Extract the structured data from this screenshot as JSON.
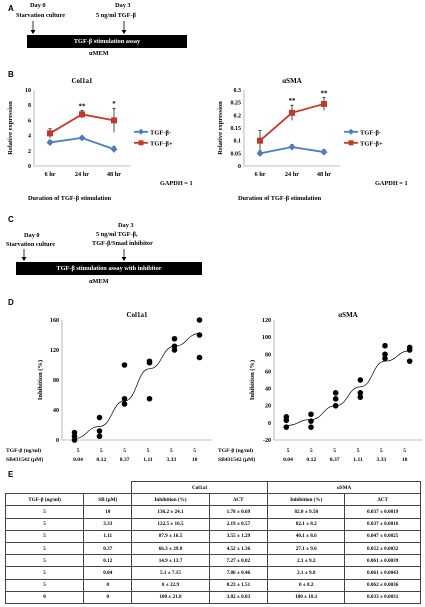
{
  "panel_a": {
    "letter": "A",
    "day0": "Day 0",
    "starvation": "Starvation culture",
    "day3": "Day 3",
    "tgf": "5 ng/ml TGF-β",
    "assay": "TGF-β stimulation assay",
    "medium": "αMEM"
  },
  "panel_b": {
    "letter": "B",
    "xtitle": "Duration of TGF-β stimulation",
    "gapdh": "GAPDH = 1"
  },
  "panel_c": {
    "letter": "C",
    "day0": "Day 0",
    "starvation": "Starvation culture",
    "day3": "Day 3",
    "tgf_line1": "5 ng/ml TGF-β,",
    "tgf_line2": "TGF-β/Smad inhibitor",
    "assay": "TGF-β stimulation assay with inhibitor",
    "medium": "αMEM"
  },
  "panel_d": {
    "letter": "D",
    "row1_label": "TGF-β (ng/ml)",
    "row2_label": "SB431542 (μM)",
    "tgf_values": [
      "5",
      "5",
      "5",
      "5",
      "5",
      "5"
    ],
    "sb_values": [
      "0.04",
      "0.12",
      "0.37",
      "1.11",
      "3.33",
      "10"
    ]
  },
  "panel_e": {
    "letter": "E",
    "group_col1a1": "Col1a1",
    "group_asma": "αSMA",
    "headers": [
      "TGF-β (ng/ml)",
      "SB (μM)",
      "Inhibition (%)",
      "ΔCT",
      "Inhibition (%)",
      "ΔCT"
    ],
    "rows": [
      [
        "5",
        "10",
        "136.2 ± 24.1",
        "1.78 ± 0.69",
        "82.0 ± 9.50",
        "0.037 ± 0.0019"
      ],
      [
        "5",
        "3.33",
        "122.5 ± 16.5",
        "2.19 ± 0.57",
        "82.1 ± 8.2",
        "0.037 ± 0.0016"
      ],
      [
        "5",
        "1.11",
        "87.9 ± 16.5",
        "3.55 ± 1.29",
        "40.1 ± 8.6",
        "0.047 ± 0.0025"
      ],
      [
        "5",
        "0.37",
        "66.3 ± 29.8",
        "4.52 ± 1.36",
        "27.1 ± 9.6",
        "0.052 ± 0.0032"
      ],
      [
        "5",
        "0.12",
        "14.9 ± 13.7",
        "7.27 ± 0.82",
        "2.1 ± 9.2",
        "0.061 ± 0.0039"
      ],
      [
        "5",
        "0.04",
        "5.1 ± 7.15",
        "7.86 ± 0.46",
        "2.1 ± 9.8",
        "0.061 ± 0.0043"
      ],
      [
        "5",
        "0",
        "0 ± 22.9",
        "8.23 ± 1.51",
        "0 ± 8.2",
        "0.062 ± 0.0036"
      ],
      [
        "0",
        "0",
        "100 ± 21.8",
        "3.02 ± 0.83",
        "100 ± 18.1",
        "0.033 ± 0.0031"
      ]
    ]
  },
  "chart_data": [
    {
      "id": "col1a1_time",
      "type": "line",
      "title": "Col1a1",
      "ylabel": "Relative expression",
      "categories": [
        "6 hr",
        "24 hr",
        "48 hr"
      ],
      "ylim": [
        0,
        10
      ],
      "yticks": [
        "0",
        "2",
        "4",
        "6",
        "8",
        "10"
      ],
      "series": [
        {
          "name": "TGF-β-",
          "color": "#4a7ebb",
          "marker": "diamond",
          "values": [
            3.1,
            3.7,
            2.2
          ],
          "errors": [
            0.3,
            0.2,
            0.4
          ]
        },
        {
          "name": "TGF-β+",
          "color": "#c0392b",
          "marker": "square",
          "values": [
            4.3,
            6.8,
            6.0
          ],
          "errors": [
            0.6,
            0.5,
            1.6
          ]
        }
      ],
      "annotations": [
        {
          "category": "24 hr",
          "text": "**"
        },
        {
          "category": "48 hr",
          "text": "*"
        }
      ]
    },
    {
      "id": "asma_time",
      "type": "line",
      "title": "αSMA",
      "ylabel": "Relative expression",
      "categories": [
        "6 hr",
        "24 hr",
        "48 hr"
      ],
      "ylim": [
        0,
        0.3
      ],
      "yticks": [
        "0",
        "0.05",
        "0.1",
        "0.15",
        "0.2",
        "0.25",
        "0.3"
      ],
      "series": [
        {
          "name": "TGF-β-",
          "color": "#4a7ebb",
          "marker": "diamond",
          "values": [
            0.05,
            0.075,
            0.055
          ],
          "errors": [
            0.01,
            0.01,
            0.01
          ]
        },
        {
          "name": "TGF-β+",
          "color": "#c0392b",
          "marker": "square",
          "values": [
            0.1,
            0.21,
            0.245
          ],
          "errors": [
            0.04,
            0.03,
            0.025
          ]
        }
      ],
      "annotations": [
        {
          "category": "24 hr",
          "text": "**"
        },
        {
          "category": "48 hr",
          "text": "**"
        }
      ]
    },
    {
      "id": "col1a1_inhibition",
      "type": "scatter",
      "title": "Col1a1",
      "ylabel": "Inhibition (%)",
      "ylim": [
        0,
        160
      ],
      "yticks": [
        "0",
        "40",
        "80",
        "120",
        "160"
      ],
      "x_categories": [
        "0.04",
        "0.12",
        "0.37",
        "1.11",
        "3.33",
        "10"
      ],
      "points": [
        [
          0.04,
          5
        ],
        [
          0.04,
          10
        ],
        [
          0.04,
          0
        ],
        [
          0.12,
          30
        ],
        [
          0.12,
          12
        ],
        [
          0.12,
          5
        ],
        [
          0.37,
          100
        ],
        [
          0.37,
          55
        ],
        [
          0.37,
          48
        ],
        [
          1.11,
          105
        ],
        [
          1.11,
          103
        ],
        [
          1.11,
          55
        ],
        [
          3.33,
          135
        ],
        [
          3.33,
          125
        ],
        [
          3.33,
          120
        ],
        [
          10,
          160
        ],
        [
          10,
          140
        ],
        [
          10,
          110
        ]
      ],
      "fit": [
        [
          0.04,
          2
        ],
        [
          0.12,
          18
        ],
        [
          0.37,
          52
        ],
        [
          1.11,
          95
        ],
        [
          3.33,
          125
        ],
        [
          10,
          142
        ]
      ]
    },
    {
      "id": "asma_inhibition",
      "type": "scatter",
      "title": "αSMA",
      "ylabel": "Inhibition (%)",
      "ylim": [
        -20,
        120
      ],
      "yticks": [
        "-20",
        "0",
        "20",
        "40",
        "60",
        "80",
        "100",
        "120"
      ],
      "x_categories": [
        "0.04",
        "0.12",
        "0.37",
        "1.11",
        "3.33",
        "10"
      ],
      "points": [
        [
          0.04,
          7
        ],
        [
          0.04,
          3
        ],
        [
          0.04,
          -5
        ],
        [
          0.12,
          10
        ],
        [
          0.12,
          2
        ],
        [
          0.12,
          -5
        ],
        [
          0.37,
          35
        ],
        [
          0.37,
          28
        ],
        [
          0.37,
          20
        ],
        [
          1.11,
          50
        ],
        [
          1.11,
          35
        ],
        [
          1.11,
          30
        ],
        [
          3.33,
          90
        ],
        [
          3.33,
          80
        ],
        [
          3.33,
          75
        ],
        [
          10,
          88
        ],
        [
          10,
          85
        ],
        [
          10,
          72
        ]
      ],
      "fit": [
        [
          0.04,
          -3
        ],
        [
          0.12,
          4
        ],
        [
          0.37,
          20
        ],
        [
          1.11,
          42
        ],
        [
          3.33,
          72
        ],
        [
          10,
          84
        ]
      ]
    }
  ]
}
